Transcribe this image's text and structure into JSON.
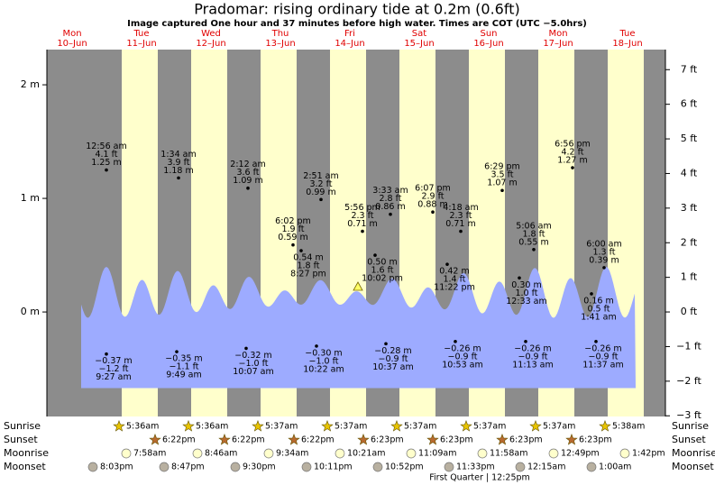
{
  "chart_data": {
    "type": "tide",
    "title": "Pradomar: rising  ordinary tide at 0.2m (0.6ft)",
    "subtitle": "Image captured One hour and 37 minutes before high water. Times are COT (UTC −5.0hrs)",
    "days": [
      "Mon",
      "Tue",
      "Wed",
      "Thu",
      "Fri",
      "Sat",
      "Sun",
      "Mon",
      "Tue"
    ],
    "dates": [
      "10–Jun",
      "11–Jun",
      "12–Jun",
      "13–Jun",
      "14–Jun",
      "15–Jun",
      "16–Jun",
      "17–Jun",
      "18–Jun"
    ],
    "ylim": [
      -0.92,
      2.31
    ],
    "yticks": [
      {
        "value": 2,
        "label": "2 m"
      },
      {
        "value": 1,
        "label": "1 m"
      },
      {
        "value": 0,
        "label": "0 m"
      }
    ],
    "y2lim": [
      -3.02,
      7.58
    ],
    "y2ticks": [
      {
        "value": 7,
        "label": "7 ft"
      },
      {
        "value": 6,
        "label": "6 ft"
      },
      {
        "value": 5,
        "label": "5 ft"
      },
      {
        "value": 4,
        "label": "4 ft"
      },
      {
        "value": 3,
        "label": "3 ft"
      },
      {
        "value": 2,
        "label": "2 ft"
      },
      {
        "value": 1,
        "label": "1 ft"
      },
      {
        "value": 0,
        "label": "0 ft"
      },
      {
        "value": -1,
        "label": "−1 ft"
      },
      {
        "value": -2,
        "label": "−2 ft"
      },
      {
        "value": -3,
        "label": "−3 ft"
      }
    ],
    "highs": [
      {
        "time": "12:56 am",
        "ft": "4.1 ft",
        "m": 1.25,
        "m_label": "1.25 m"
      },
      {
        "time": "1:34 am",
        "ft": "3.9 ft",
        "m": 1.18,
        "m_label": "1.18 m"
      },
      {
        "time": "2:12 am",
        "ft": "3.6 ft",
        "m": 1.09,
        "m_label": "1.09 m"
      },
      {
        "time": "2:51 am",
        "ft": "3.2 ft",
        "m": 0.99,
        "m_label": "0.99 m"
      },
      {
        "time": "3:33 am",
        "ft": "2.8 ft",
        "m": 0.86,
        "m_label": "0.86 m"
      },
      {
        "time": "4:18 am",
        "ft": "2.3 ft",
        "m": 0.71,
        "m_label": "0.71 m"
      },
      {
        "time": "5:06 am",
        "ft": "1.8 ft",
        "m": 0.55,
        "m_label": "0.55 m"
      },
      {
        "time": "6:00 am",
        "ft": "1.3 ft",
        "m": 0.39,
        "m_label": "0.39 m"
      }
    ],
    "second_highs": [
      {
        "time": "6:02 pm",
        "ft": "1.9 ft",
        "m": 0.59,
        "m_label": "0.59 m"
      },
      {
        "time": "5:56 pm",
        "ft": "2.3 ft",
        "m": 0.71,
        "m_label": "0.71 m"
      },
      {
        "time": "6:07 pm",
        "ft": "2.9 ft",
        "m": 0.88,
        "m_label": "0.88 m"
      },
      {
        "time": "6:29 pm",
        "ft": "3.5 ft",
        "m": 1.07,
        "m_label": "1.07 m"
      },
      {
        "time": "6:56 pm",
        "ft": "4.2 ft",
        "m": 1.27,
        "m_label": "1.27 m"
      }
    ],
    "mid_lows": [
      {
        "time": "8:27 pm",
        "ft": "1.8 ft",
        "m": 0.54,
        "m_label": "0.54 m"
      },
      {
        "time": "10:02 pm",
        "ft": "1.6 ft",
        "m": 0.5,
        "m_label": "0.50 m"
      },
      {
        "time": "11:22 pm",
        "ft": "1.4 ft",
        "m": 0.42,
        "m_label": "0.42 m"
      },
      {
        "time": "12:33 am",
        "ft": "1.0 ft",
        "m": 0.3,
        "m_label": "0.30 m"
      },
      {
        "time": "1:41 am",
        "ft": "0.5 ft",
        "m": 0.16,
        "m_label": "0.16 m"
      }
    ],
    "lows": [
      {
        "time": "9:27 am",
        "ft": "−1.2 ft",
        "m": -0.37,
        "m_label": "−0.37 m"
      },
      {
        "time": "9:49 am",
        "ft": "−1.1 ft",
        "m": -0.35,
        "m_label": "−0.35 m"
      },
      {
        "time": "10:07 am",
        "ft": "−1.0 ft",
        "m": -0.32,
        "m_label": "−0.32 m"
      },
      {
        "time": "10:22 am",
        "ft": "−1.0 ft",
        "m": -0.3,
        "m_label": "−0.30 m"
      },
      {
        "time": "10:37 am",
        "ft": "−0.9 ft",
        "m": -0.28,
        "m_label": "−0.28 m"
      },
      {
        "time": "10:53 am",
        "ft": "−0.9 ft",
        "m": -0.26,
        "m_label": "−0.26 m"
      },
      {
        "time": "11:13 am",
        "ft": "−0.9 ft",
        "m": -0.26,
        "m_label": "−0.26 m"
      },
      {
        "time": "11:37 am",
        "ft": "−0.9 ft",
        "m": -0.26,
        "m_label": "−0.26 m"
      }
    ],
    "rows": [
      {
        "name": "Sunrise",
        "times": [
          "5:36am",
          "5:36am",
          "5:37am",
          "5:37am",
          "5:37am",
          "5:37am",
          "5:37am",
          "5:38am"
        ]
      },
      {
        "name": "Sunset",
        "times": [
          "6:22pm",
          "6:22pm",
          "6:22pm",
          "6:23pm",
          "6:23pm",
          "6:23pm",
          "6:23pm"
        ]
      },
      {
        "name": "Moonrise",
        "times": [
          "7:58am",
          "8:46am",
          "9:34am",
          "10:21am",
          "11:09am",
          "11:58am",
          "12:49pm",
          "1:42pm"
        ]
      },
      {
        "name": "Moonset",
        "times": [
          "8:03pm",
          "8:47pm",
          "9:30pm",
          "10:11pm",
          "10:52pm",
          "11:33pm",
          "12:15am",
          "1:00am"
        ]
      }
    ],
    "moon_phase": "First Quarter | 12:25pm"
  }
}
